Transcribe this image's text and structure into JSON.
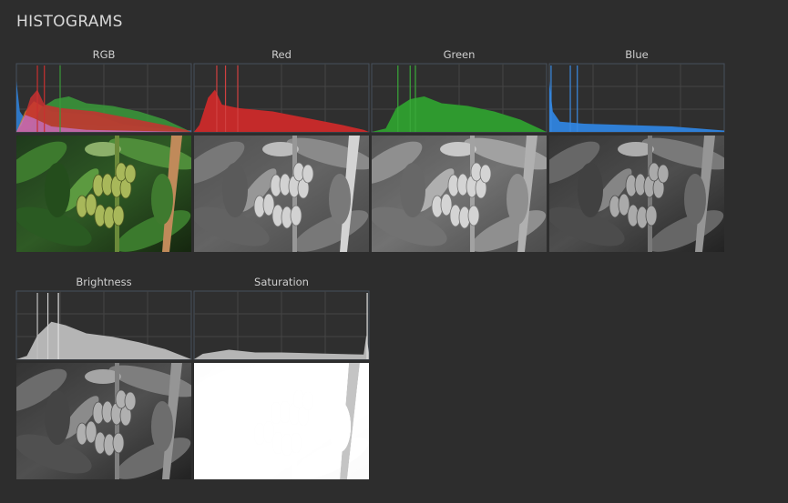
{
  "header": {
    "title": "HISTOGRAMS"
  },
  "panels": [
    {
      "label": "RGB"
    },
    {
      "label": "Red"
    },
    {
      "label": "Green"
    },
    {
      "label": "Blue"
    },
    {
      "label": "Brightness"
    },
    {
      "label": "Saturation"
    }
  ]
}
